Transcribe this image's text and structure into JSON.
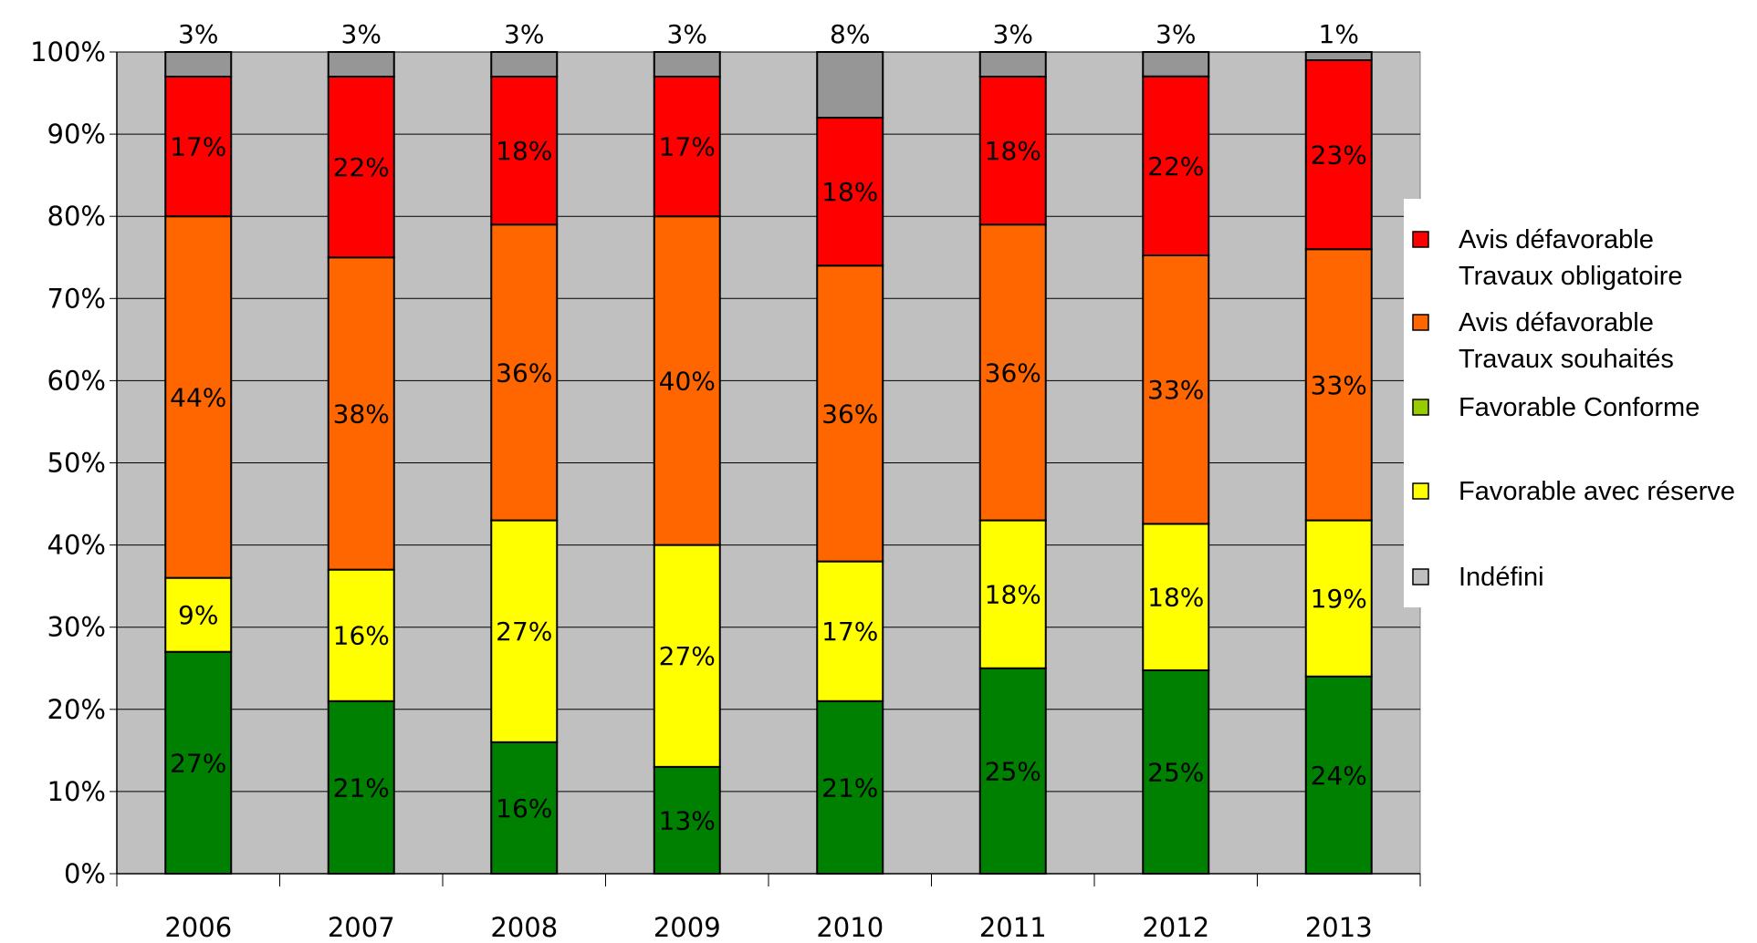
{
  "chart_data": {
    "type": "bar",
    "stacked": true,
    "percent": true,
    "categories": [
      "2006",
      "2007",
      "2008",
      "2009",
      "2010",
      "2011",
      "2012",
      "2013"
    ],
    "series": [
      {
        "name": "Favorable Conforme",
        "color": "#008000",
        "values": [
          27,
          21,
          16,
          13,
          21,
          25,
          25,
          24
        ],
        "labels": [
          "27%",
          "21%",
          "16%",
          "13%",
          "21%",
          "25%",
          "25%",
          "24%"
        ]
      },
      {
        "name": "Favorable avec réserve",
        "color": "#ffff00",
        "values": [
          9,
          16,
          27,
          27,
          17,
          18,
          18,
          19
        ],
        "labels": [
          "9%",
          "16%",
          "27%",
          "27%",
          "17%",
          "18%",
          "18%",
          "19%"
        ]
      },
      {
        "name": "Avis défavorable Travaux souhaités",
        "color": "#ff6600",
        "values": [
          44,
          38,
          36,
          40,
          36,
          36,
          33,
          33
        ],
        "labels": [
          "44%",
          "38%",
          "36%",
          "40%",
          "36%",
          "36%",
          "33%",
          "33%"
        ]
      },
      {
        "name": "Avis défavorable Travaux obligatoire",
        "color": "#ff0000",
        "values": [
          17,
          22,
          18,
          17,
          18,
          18,
          22,
          23
        ],
        "labels": [
          "17%",
          "22%",
          "18%",
          "17%",
          "18%",
          "18%",
          "22%",
          "23%"
        ]
      },
      {
        "name": "Indéfini",
        "color": "#969696",
        "values": [
          3,
          3,
          3,
          3,
          8,
          3,
          3,
          1
        ],
        "labels": [
          "3%",
          "3%",
          "3%",
          "3%",
          "8%",
          "3%",
          "3%",
          "1%"
        ]
      }
    ],
    "y_ticks": [
      "0%",
      "10%",
      "20%",
      "30%",
      "40%",
      "50%",
      "60%",
      "70%",
      "80%",
      "90%",
      "100%"
    ],
    "ylim": [
      0,
      100
    ],
    "grid": true,
    "plot_background": "#c0c0c0",
    "legend": {
      "position": "right",
      "entries": [
        {
          "lines": [
            "Avis défavorable",
            "Travaux obligatoire"
          ],
          "color": "#ff0000"
        },
        {
          "lines": [
            "Avis défavorable",
            "Travaux souhaités"
          ],
          "color": "#ff6600"
        },
        {
          "lines": [
            "Favorable Conforme"
          ],
          "color": "#99cc00"
        },
        {
          "lines": [
            "Favorable avec réserve"
          ],
          "color": "#ffff00"
        },
        {
          "lines": [
            "Indéfini"
          ],
          "color": "#c0c0c0"
        }
      ]
    }
  }
}
